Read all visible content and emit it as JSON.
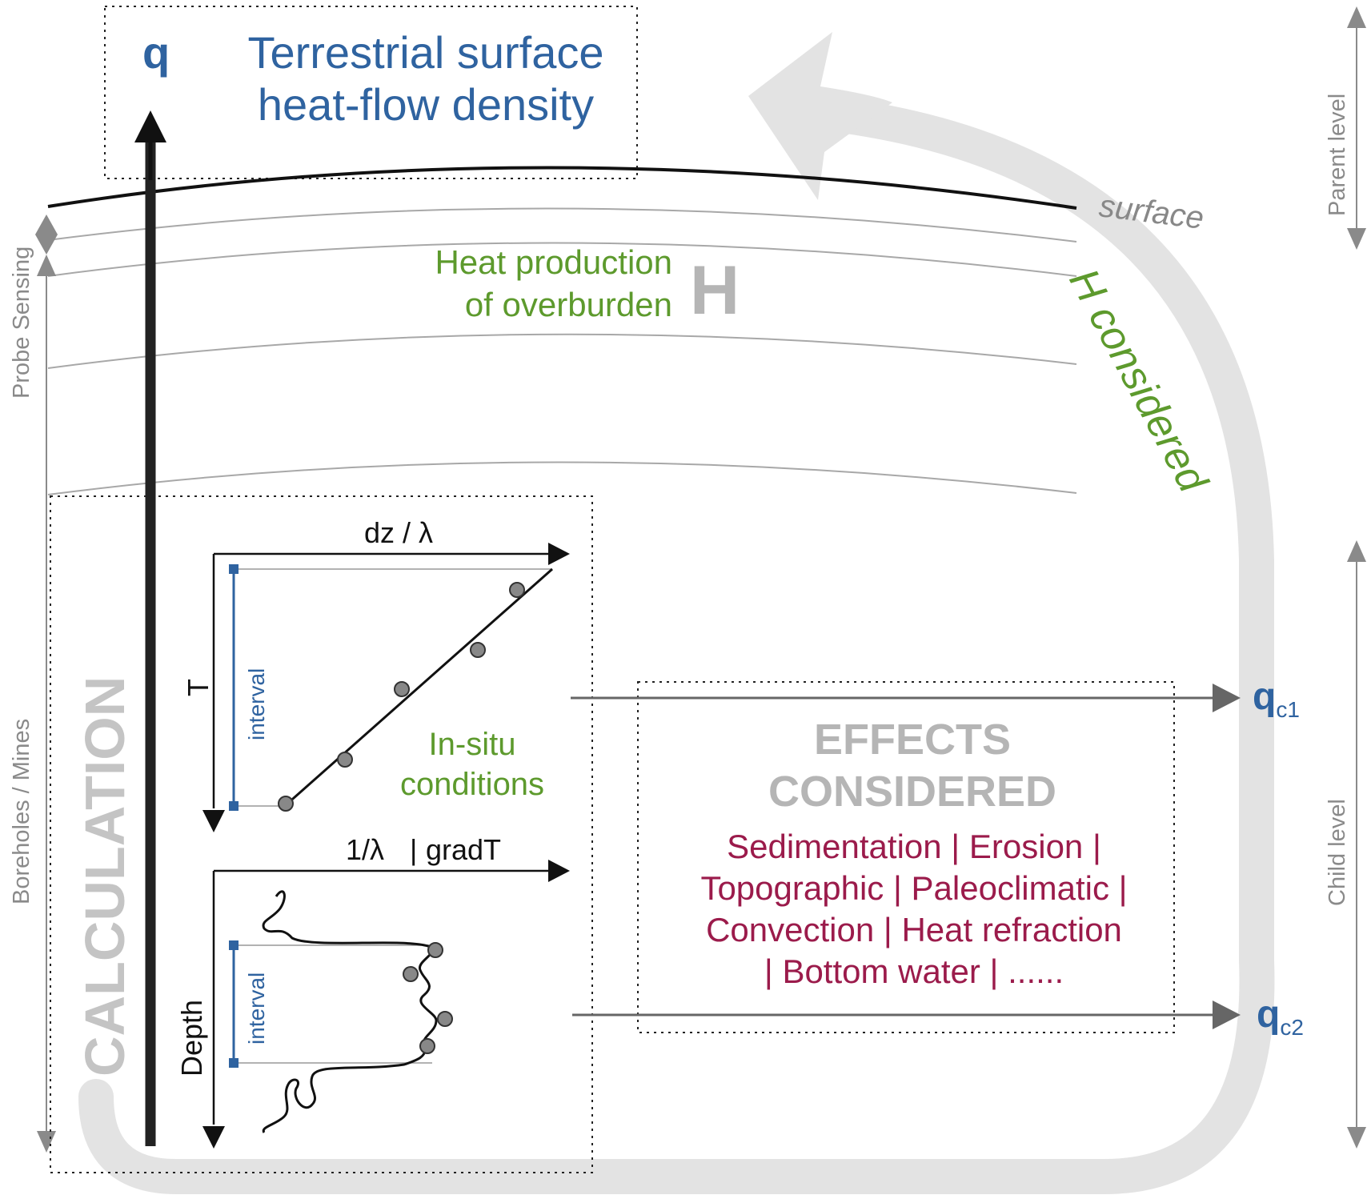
{
  "top_box": {
    "symbol": "q",
    "title_line1": "Terrestrial surface",
    "title_line2": "heat-flow density"
  },
  "surface_label": "surface",
  "heat_production": {
    "line1": "Heat production",
    "line2": "of overburden",
    "symbol": "H"
  },
  "loop_label": "H considered",
  "side_labels": {
    "probe_sensing": "Probe Sensing",
    "boreholes_mines": "Boreholes / Mines",
    "parent_level": "Parent level",
    "child_level": "Child level"
  },
  "calculation_label": "CALCULATION",
  "upper_plot": {
    "x_label": "dz / λ",
    "y_label": "T",
    "interval_label": "interval"
  },
  "insitu": {
    "line1": "In-situ",
    "line2": "conditions"
  },
  "lower_plot": {
    "x_label_left": "1/λ",
    "x_label_sep": "|",
    "x_label_right": "gradT",
    "y_label": "Depth",
    "interval_label": "interval"
  },
  "effects": {
    "title_line1": "EFFECTS",
    "title_line2": "CONSIDERED",
    "list_line1": "Sedimentation | Erosion |",
    "list_line2": "Topographic | Paleoclimatic |",
    "list_line3": "Convection | Heat refraction",
    "list_line4": "| Bottom water | ......"
  },
  "outputs": {
    "qc1_base": "q",
    "qc1_sub": "c1",
    "qc2_base": "q",
    "qc2_sub": "c2"
  },
  "colors": {
    "blue": "#2f63a0",
    "green": "#5d9a2d",
    "crimson": "#9b1b4b",
    "light_gray": "#e3e3e3",
    "mid_gray": "#8a8a8a"
  }
}
